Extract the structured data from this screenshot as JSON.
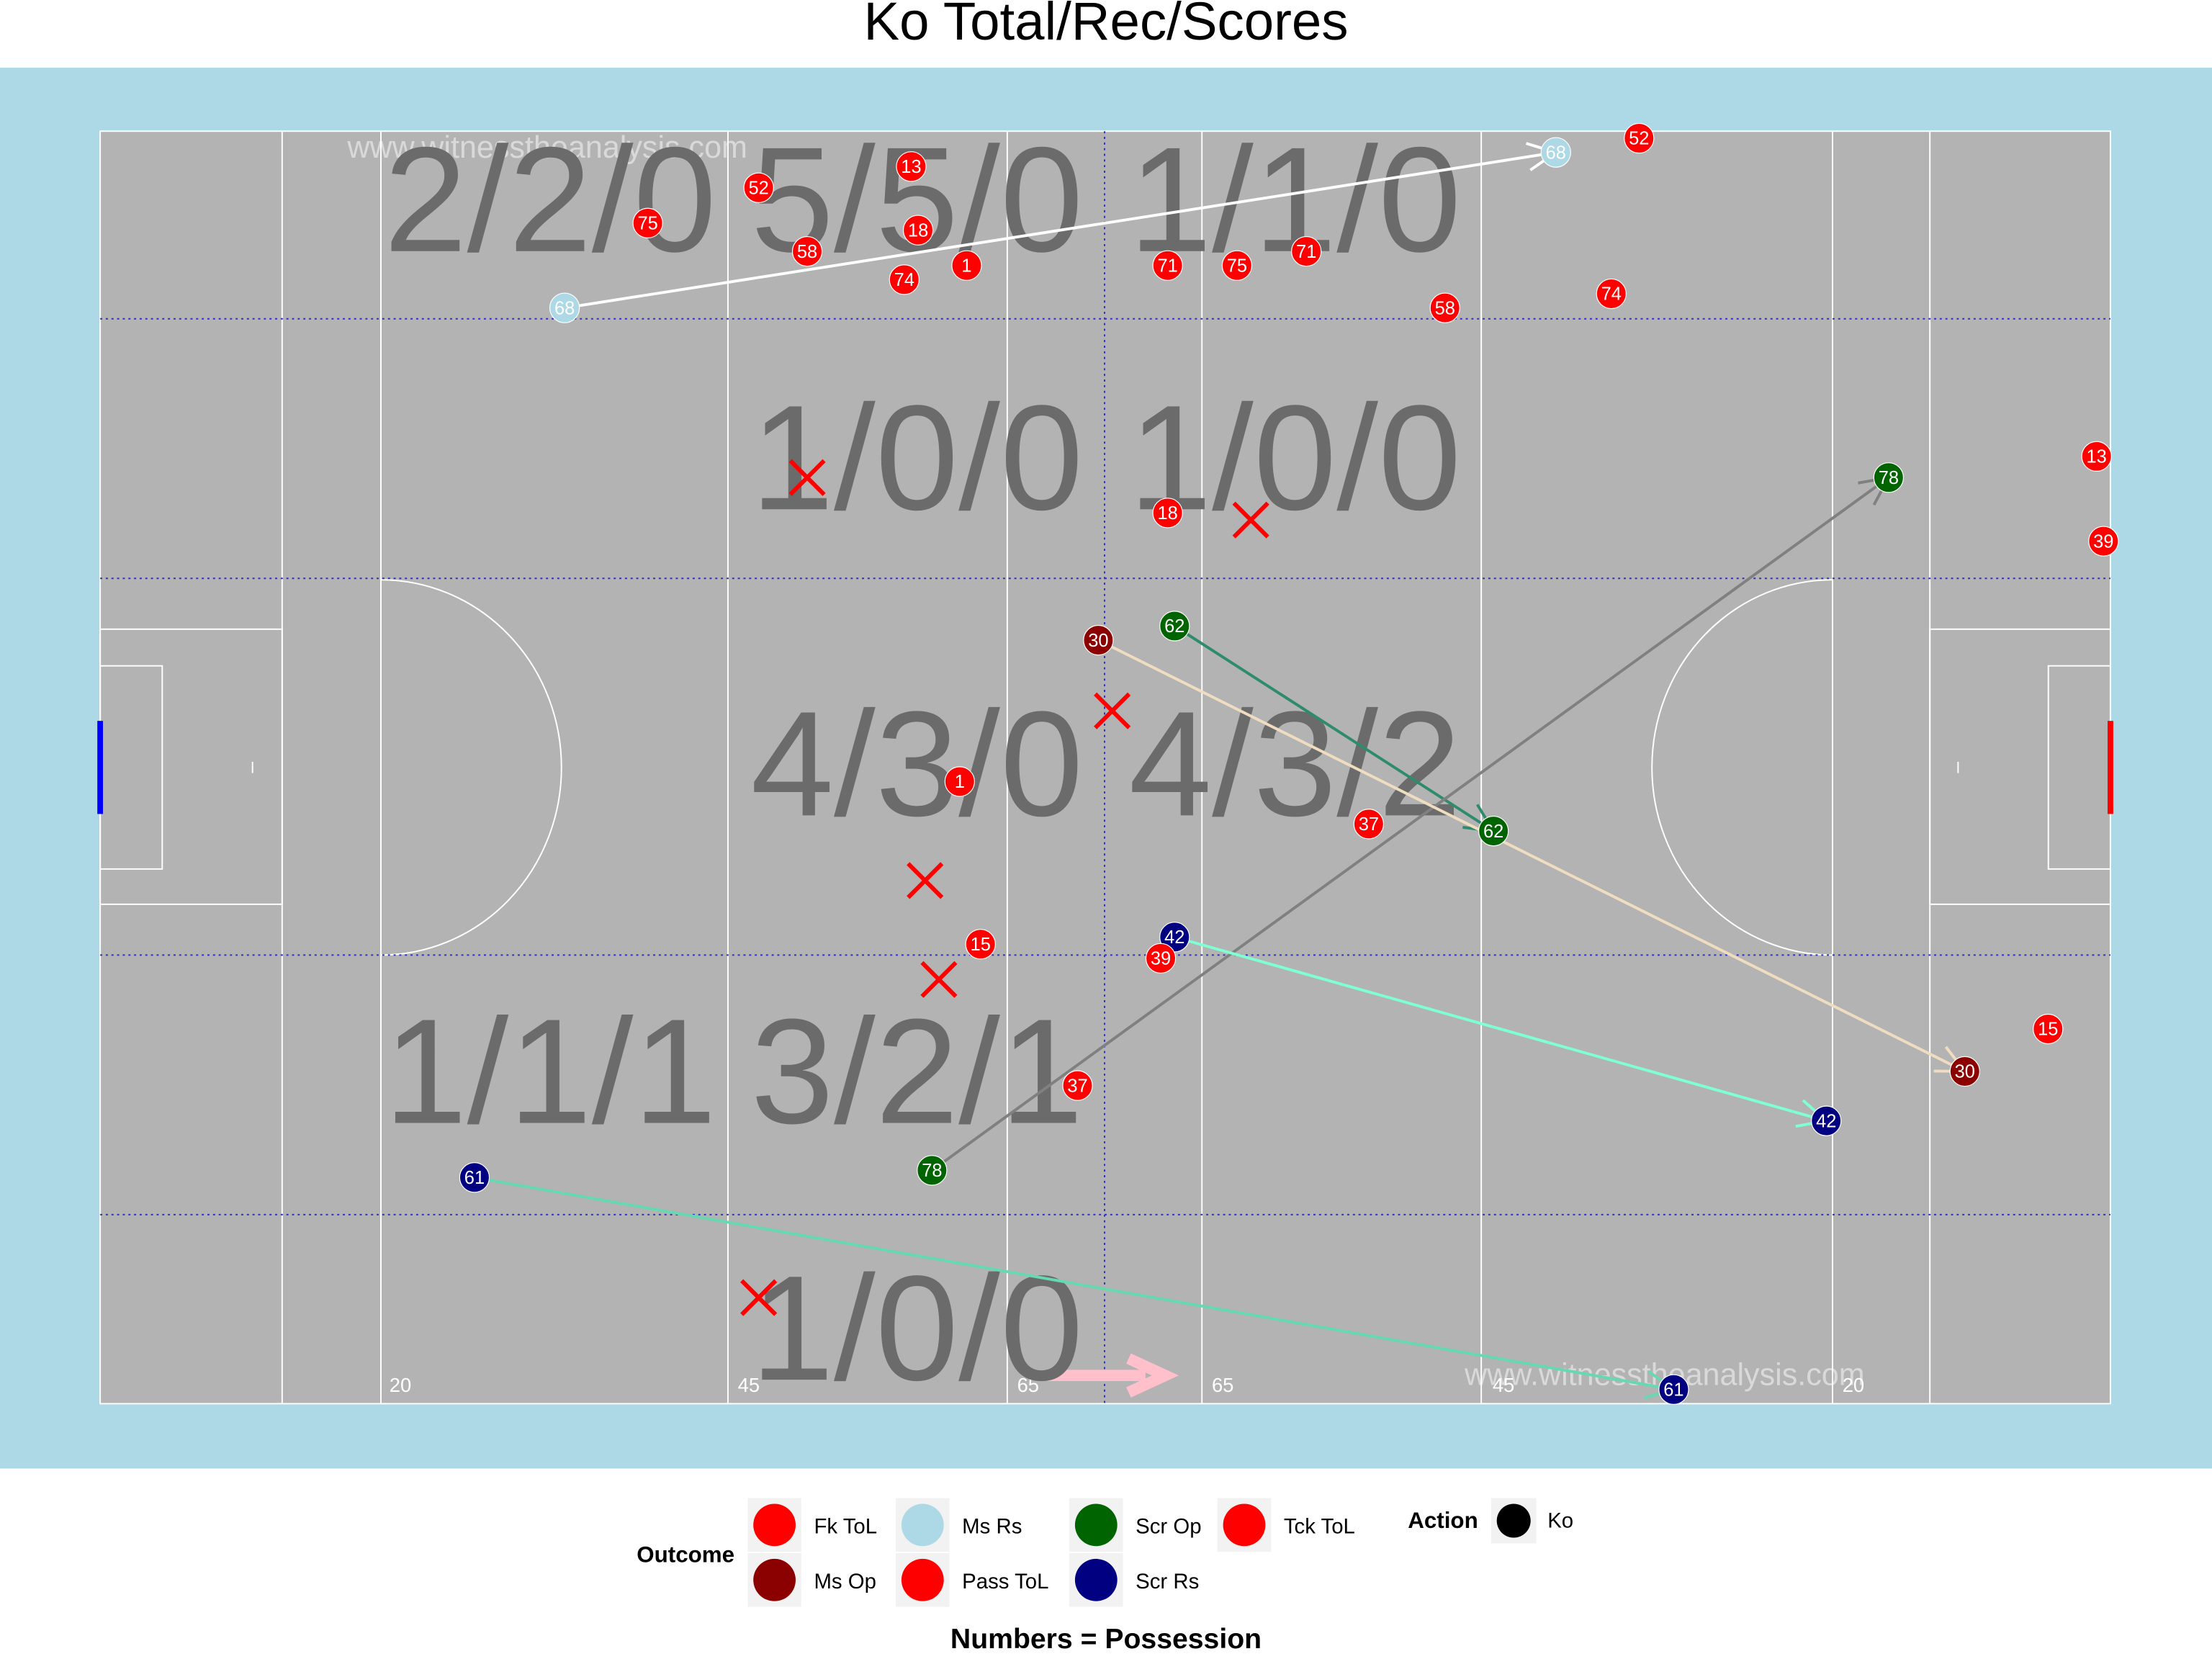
{
  "chart_data": {
    "type": "pitch",
    "title": "Ko Total/Rec/Scores",
    "caption": "Numbers = Possession",
    "xlim": [
      0,
      145
    ],
    "ylim": [
      0,
      90
    ],
    "watermarks": [
      "www.witnesstheanalysis.com",
      "www.witnesstheanalysis.com"
    ],
    "pitch_labels": [
      "20",
      "45",
      "65",
      "65",
      "45",
      "20"
    ],
    "zone_labels": [
      "2/2/0",
      "5/5/0",
      "1/1/0",
      "1/0/0",
      "1/0/0",
      "4/3/0",
      "4/3/2",
      "1/1/1",
      "3/2/1",
      "1/0/0"
    ],
    "points": [
      {
        "x": 47.5,
        "y": 4,
        "label": 52,
        "color": "#ff0000"
      },
      {
        "x": 58.5,
        "y": 2.5,
        "label": 13,
        "color": "#ff0000"
      },
      {
        "x": 39.5,
        "y": 6.5,
        "label": 75,
        "color": "#ff0000"
      },
      {
        "x": 59,
        "y": 7,
        "label": 18,
        "color": "#ff0000"
      },
      {
        "x": 51,
        "y": 8.5,
        "label": 58,
        "color": "#ff0000"
      },
      {
        "x": 58,
        "y": 10.5,
        "label": 74,
        "color": "#ff0000"
      },
      {
        "x": 62.5,
        "y": 9.5,
        "label": 1,
        "color": "#ff0000"
      },
      {
        "x": 77,
        "y": 9.5,
        "label": 71,
        "color": "#ff0000"
      },
      {
        "x": 82,
        "y": 9.5,
        "label": 75,
        "color": "#ff0000"
      },
      {
        "x": 87,
        "y": 8.5,
        "label": 71,
        "color": "#ff0000"
      },
      {
        "x": 97,
        "y": 12.5,
        "label": 58,
        "color": "#ff0000"
      },
      {
        "x": 109,
        "y": 11.5,
        "label": 74,
        "color": "#ff0000"
      },
      {
        "x": 111,
        "y": 0.5,
        "label": 52,
        "color": "#ff0000"
      },
      {
        "x": 77,
        "y": 27,
        "label": 18,
        "color": "#ff0000"
      },
      {
        "x": 62,
        "y": 46,
        "label": 1,
        "color": "#ff0000"
      },
      {
        "x": 91.5,
        "y": 49,
        "label": 37,
        "color": "#ff0000"
      },
      {
        "x": 63.5,
        "y": 57.5,
        "label": 15,
        "color": "#ff0000"
      },
      {
        "x": 76.5,
        "y": 58.5,
        "label": 39,
        "color": "#ff0000"
      },
      {
        "x": 70.5,
        "y": 67.5,
        "label": 37,
        "color": "#ff0000"
      },
      {
        "x": 140.5,
        "y": 63.5,
        "label": 15,
        "color": "#ff0000"
      },
      {
        "x": 144,
        "y": 23,
        "label": 13,
        "color": "#ff0000"
      },
      {
        "x": 144.5,
        "y": 29,
        "label": 39,
        "color": "#ff0000"
      }
    ],
    "moves": [
      {
        "x": [
          33.5,
          105
        ],
        "y": [
          12.5,
          1.5
        ],
        "labels": [
          68,
          68
        ],
        "color": "#add8e6",
        "line_color": "#ffffff"
      },
      {
        "x": [
          77.5,
          100.5
        ],
        "y": [
          35,
          49.5
        ],
        "labels": [
          62,
          62
        ],
        "color": "#006400",
        "line_color": "#2e8b6e"
      },
      {
        "x": [
          60,
          129
        ],
        "y": [
          73.5,
          24.5
        ],
        "labels": [
          78,
          78
        ],
        "color": "#006400",
        "line_color": "#808080"
      },
      {
        "x": [
          72,
          134.5
        ],
        "y": [
          36,
          66.5
        ],
        "labels": [
          30,
          30
        ],
        "color": "#8b0000",
        "line_color": "#f0dcc0"
      },
      {
        "x": [
          77.5,
          124.5
        ],
        "y": [
          57,
          70
        ],
        "labels": [
          42,
          42
        ],
        "color": "#000080",
        "line_color": "#7fffd4"
      },
      {
        "x": [
          27,
          113.5
        ],
        "y": [
          74,
          89
        ],
        "labels": [
          61,
          61
        ],
        "color": "#000080",
        "line_color": "#66d9b0"
      }
    ],
    "crosses": {
      "color": "#ff0000",
      "x": [
        51,
        83,
        73,
        59.5,
        60.5,
        47.5
      ],
      "y": [
        24.5,
        27.5,
        41,
        53,
        60,
        82.5
      ]
    },
    "legend": {
      "title": "Outcome",
      "entries": [
        {
          "name": "Fk ToL",
          "color": "#ff0000"
        },
        {
          "name": "Ms Op",
          "color": "#8b0000"
        },
        {
          "name": "Ms Rs",
          "color": "#add8e6"
        },
        {
          "name": "Pass ToL",
          "color": "#ff0000"
        },
        {
          "name": "Scr Op",
          "color": "#006400"
        },
        {
          "name": "Scr Rs",
          "color": "#000080"
        },
        {
          "name": "Tck ToL",
          "color": "#ff0000"
        }
      ]
    },
    "action_legend": {
      "title": "Action",
      "entries": [
        {
          "name": "Ko",
          "color": "#000000"
        }
      ]
    }
  }
}
